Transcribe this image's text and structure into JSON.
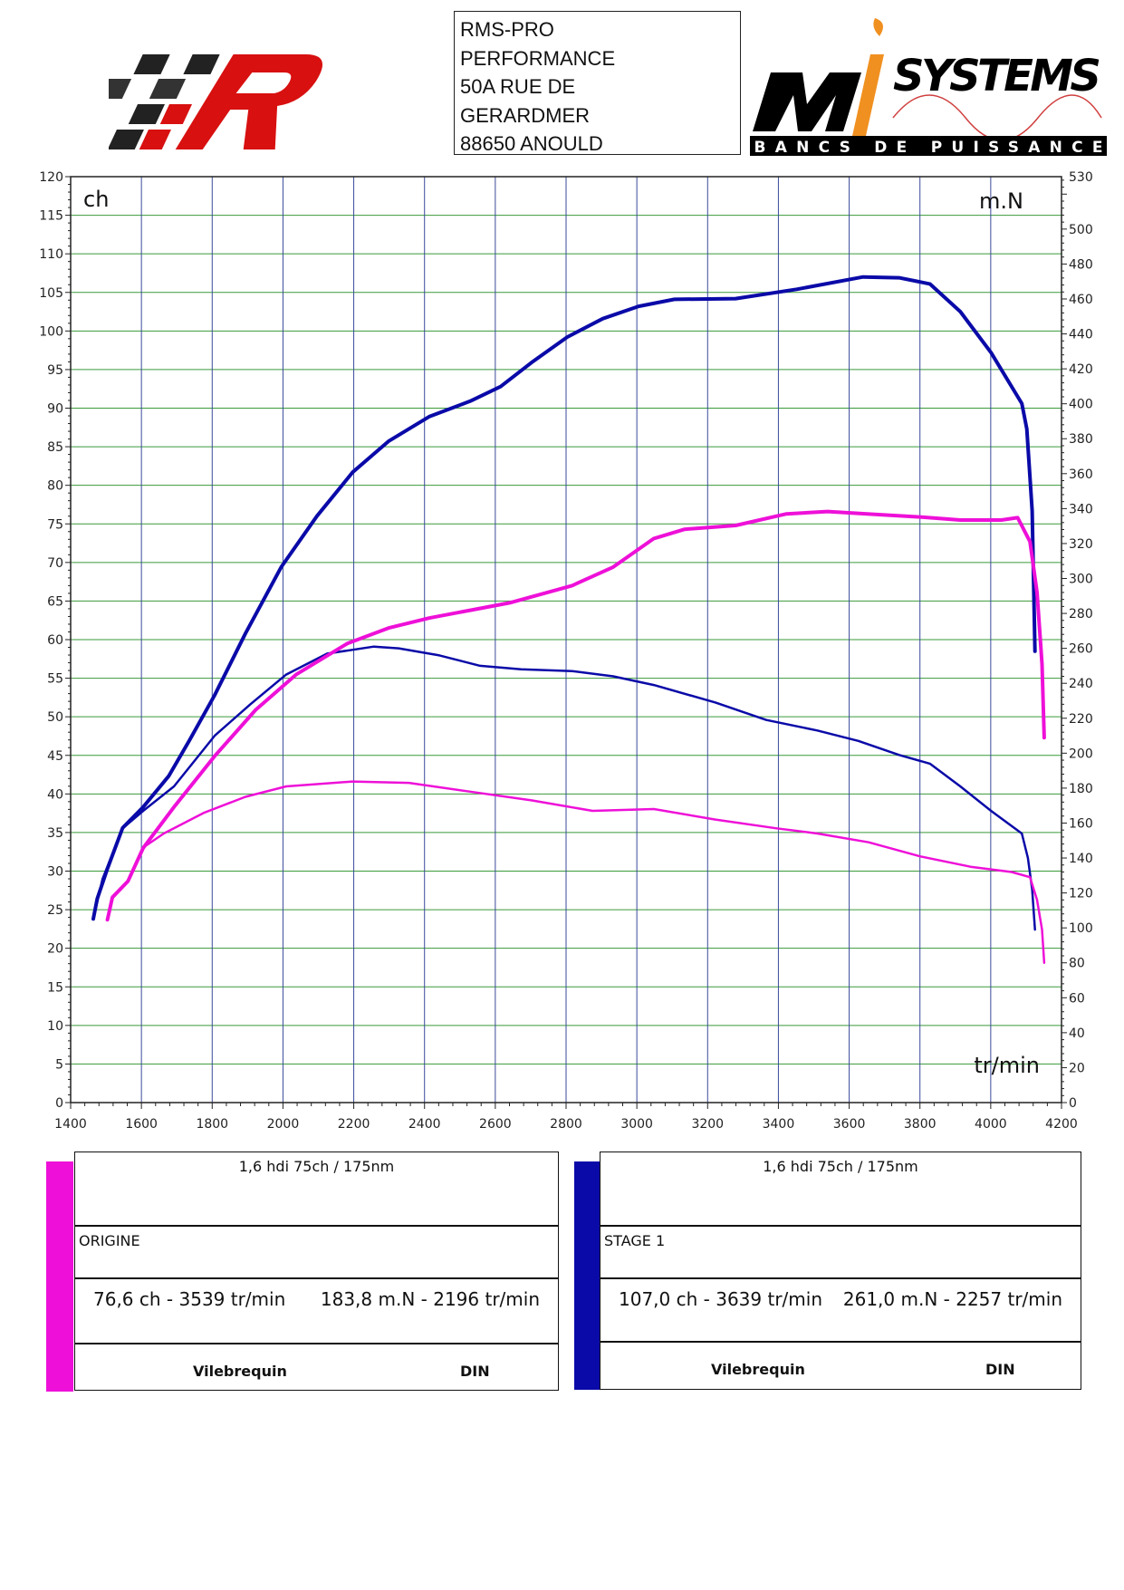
{
  "header": {
    "address_lines": [
      "RMS-PRO",
      "PERFORMANCE",
      "50A RUE DE",
      "GERARDMER",
      "88650 ANOULD"
    ],
    "logo_left_text": "RMS",
    "logo_right_text": "MI SYSTEMS",
    "logo_right_subtitle": "BANCS DE PUISSANCE"
  },
  "chart_data": {
    "type": "line",
    "xlabel": "tr/min",
    "ylabel_left": "ch",
    "ylabel_right": "m.N",
    "xlim": [
      1400,
      4200
    ],
    "ylim_left": [
      0,
      120
    ],
    "ylim_right": [
      0,
      530
    ],
    "x_ticks": [
      1400,
      1600,
      1800,
      2000,
      2200,
      2400,
      2600,
      2800,
      3000,
      3200,
      3400,
      3600,
      3800,
      4000,
      4200
    ],
    "y_left_ticks": [
      0,
      5,
      10,
      15,
      20,
      25,
      30,
      35,
      40,
      45,
      50,
      55,
      60,
      65,
      70,
      75,
      80,
      85,
      90,
      95,
      100,
      105,
      110,
      115,
      120
    ],
    "y_right_ticks": [
      0,
      20,
      40,
      60,
      80,
      100,
      120,
      140,
      160,
      180,
      200,
      220,
      240,
      260,
      280,
      300,
      320,
      340,
      360,
      380,
      400,
      420,
      440,
      460,
      480,
      500,
      530
    ],
    "grid": true,
    "colors": {
      "origine": "#ee10d8",
      "stage1": "#0a0aa8",
      "grid_h": "#3a9a3a",
      "grid_v": "#3a4a9a"
    },
    "series": [
      {
        "name": "STAGE 1",
        "quantity": "power",
        "axis": "left",
        "color": "#0a0aa8",
        "points": [
          [
            1464,
            23.8
          ],
          [
            1475,
            26.4
          ],
          [
            1504,
            30.3
          ],
          [
            1547,
            35.6
          ],
          [
            1605,
            38.3
          ],
          [
            1677,
            42.3
          ],
          [
            1735,
            46.9
          ],
          [
            1807,
            52.8
          ],
          [
            1894,
            60.8
          ],
          [
            1995,
            69.4
          ],
          [
            2096,
            76.0
          ],
          [
            2197,
            81.7
          ],
          [
            2298,
            85.7
          ],
          [
            2413,
            88.9
          ],
          [
            2529,
            90.9
          ],
          [
            2615,
            92.8
          ],
          [
            2702,
            95.9
          ],
          [
            2803,
            99.2
          ],
          [
            2904,
            101.6
          ],
          [
            3005,
            103.2
          ],
          [
            3106,
            104.1
          ],
          [
            3279,
            104.2
          ],
          [
            3452,
            105.4
          ],
          [
            3639,
            107.0
          ],
          [
            3741,
            106.9
          ],
          [
            3828,
            106.1
          ],
          [
            3914,
            102.5
          ],
          [
            4001,
            97.2
          ],
          [
            4088,
            90.6
          ],
          [
            4102,
            87.3
          ],
          [
            4117,
            76.7
          ],
          [
            4125,
            58.5
          ]
        ]
      },
      {
        "name": "STAGE 1",
        "quantity": "torque",
        "axis": "right",
        "color": "#0a0aa8",
        "points": [
          [
            1464,
            105
          ],
          [
            1490,
            128
          ],
          [
            1547,
            157
          ],
          [
            1605,
            167
          ],
          [
            1692,
            181
          ],
          [
            1807,
            210
          ],
          [
            1908,
            228
          ],
          [
            2009,
            245
          ],
          [
            2125,
            257
          ],
          [
            2257,
            261
          ],
          [
            2327,
            260
          ],
          [
            2442,
            256
          ],
          [
            2557,
            250
          ],
          [
            2673,
            248
          ],
          [
            2817,
            247
          ],
          [
            2933,
            244
          ],
          [
            3048,
            239
          ],
          [
            3222,
            229
          ],
          [
            3366,
            219
          ],
          [
            3510,
            213
          ],
          [
            3626,
            207
          ],
          [
            3741,
            199
          ],
          [
            3828,
            194
          ],
          [
            3914,
            181
          ],
          [
            4001,
            167
          ],
          [
            4088,
            154
          ],
          [
            4105,
            140
          ],
          [
            4117,
            122
          ],
          [
            4125,
            99
          ]
        ]
      },
      {
        "name": "ORIGINE",
        "quantity": "power",
        "axis": "left",
        "color": "#ee10d8",
        "points": [
          [
            1504,
            23.7
          ],
          [
            1518,
            26.6
          ],
          [
            1562,
            28.7
          ],
          [
            1605,
            33.0
          ],
          [
            1692,
            38.3
          ],
          [
            1807,
            44.9
          ],
          [
            1923,
            50.9
          ],
          [
            2038,
            55.5
          ],
          [
            2182,
            59.5
          ],
          [
            2298,
            61.5
          ],
          [
            2413,
            62.8
          ],
          [
            2529,
            63.8
          ],
          [
            2644,
            64.8
          ],
          [
            2817,
            67.0
          ],
          [
            2933,
            69.4
          ],
          [
            3048,
            73.1
          ],
          [
            3135,
            74.3
          ],
          [
            3279,
            74.8
          ],
          [
            3423,
            76.3
          ],
          [
            3539,
            76.6
          ],
          [
            3683,
            76.2
          ],
          [
            3799,
            75.9
          ],
          [
            3914,
            75.5
          ],
          [
            4030,
            75.5
          ],
          [
            4076,
            75.8
          ],
          [
            4111,
            72.7
          ],
          [
            4131,
            66.1
          ],
          [
            4145,
            56.8
          ],
          [
            4151,
            47.3
          ]
        ]
      },
      {
        "name": "ORIGINE",
        "quantity": "torque",
        "axis": "right",
        "color": "#ee10d8",
        "points": [
          [
            1504,
            105
          ],
          [
            1518,
            118
          ],
          [
            1562,
            127
          ],
          [
            1605,
            146
          ],
          [
            1663,
            154
          ],
          [
            1778,
            166
          ],
          [
            1894,
            175
          ],
          [
            2009,
            181
          ],
          [
            2196,
            183.8
          ],
          [
            2356,
            183
          ],
          [
            2529,
            178
          ],
          [
            2702,
            173
          ],
          [
            2875,
            167
          ],
          [
            3048,
            168
          ],
          [
            3222,
            162
          ],
          [
            3395,
            157
          ],
          [
            3510,
            154
          ],
          [
            3655,
            149
          ],
          [
            3799,
            141
          ],
          [
            3943,
            135
          ],
          [
            4059,
            132
          ],
          [
            4111,
            129
          ],
          [
            4131,
            116
          ],
          [
            4145,
            99
          ],
          [
            4151,
            80
          ]
        ]
      }
    ]
  },
  "legend": [
    {
      "color": "#ee10d8",
      "vehicle": "1,6 hdi 75ch / 175nm",
      "name": "ORIGINE",
      "max_power": "76,6 ch - 3539 tr/min",
      "max_torque": "183,8 m.N - 2196 tr/min",
      "mode": "Vilebrequin",
      "norm": "DIN"
    },
    {
      "color": "#0a0aa8",
      "vehicle": "1,6 hdi 75ch / 175nm",
      "name": "STAGE 1",
      "max_power": "107,0 ch - 3639 tr/min",
      "max_torque": "261,0 m.N - 2257 tr/min",
      "mode": "Vilebrequin",
      "norm": "DIN"
    }
  ]
}
